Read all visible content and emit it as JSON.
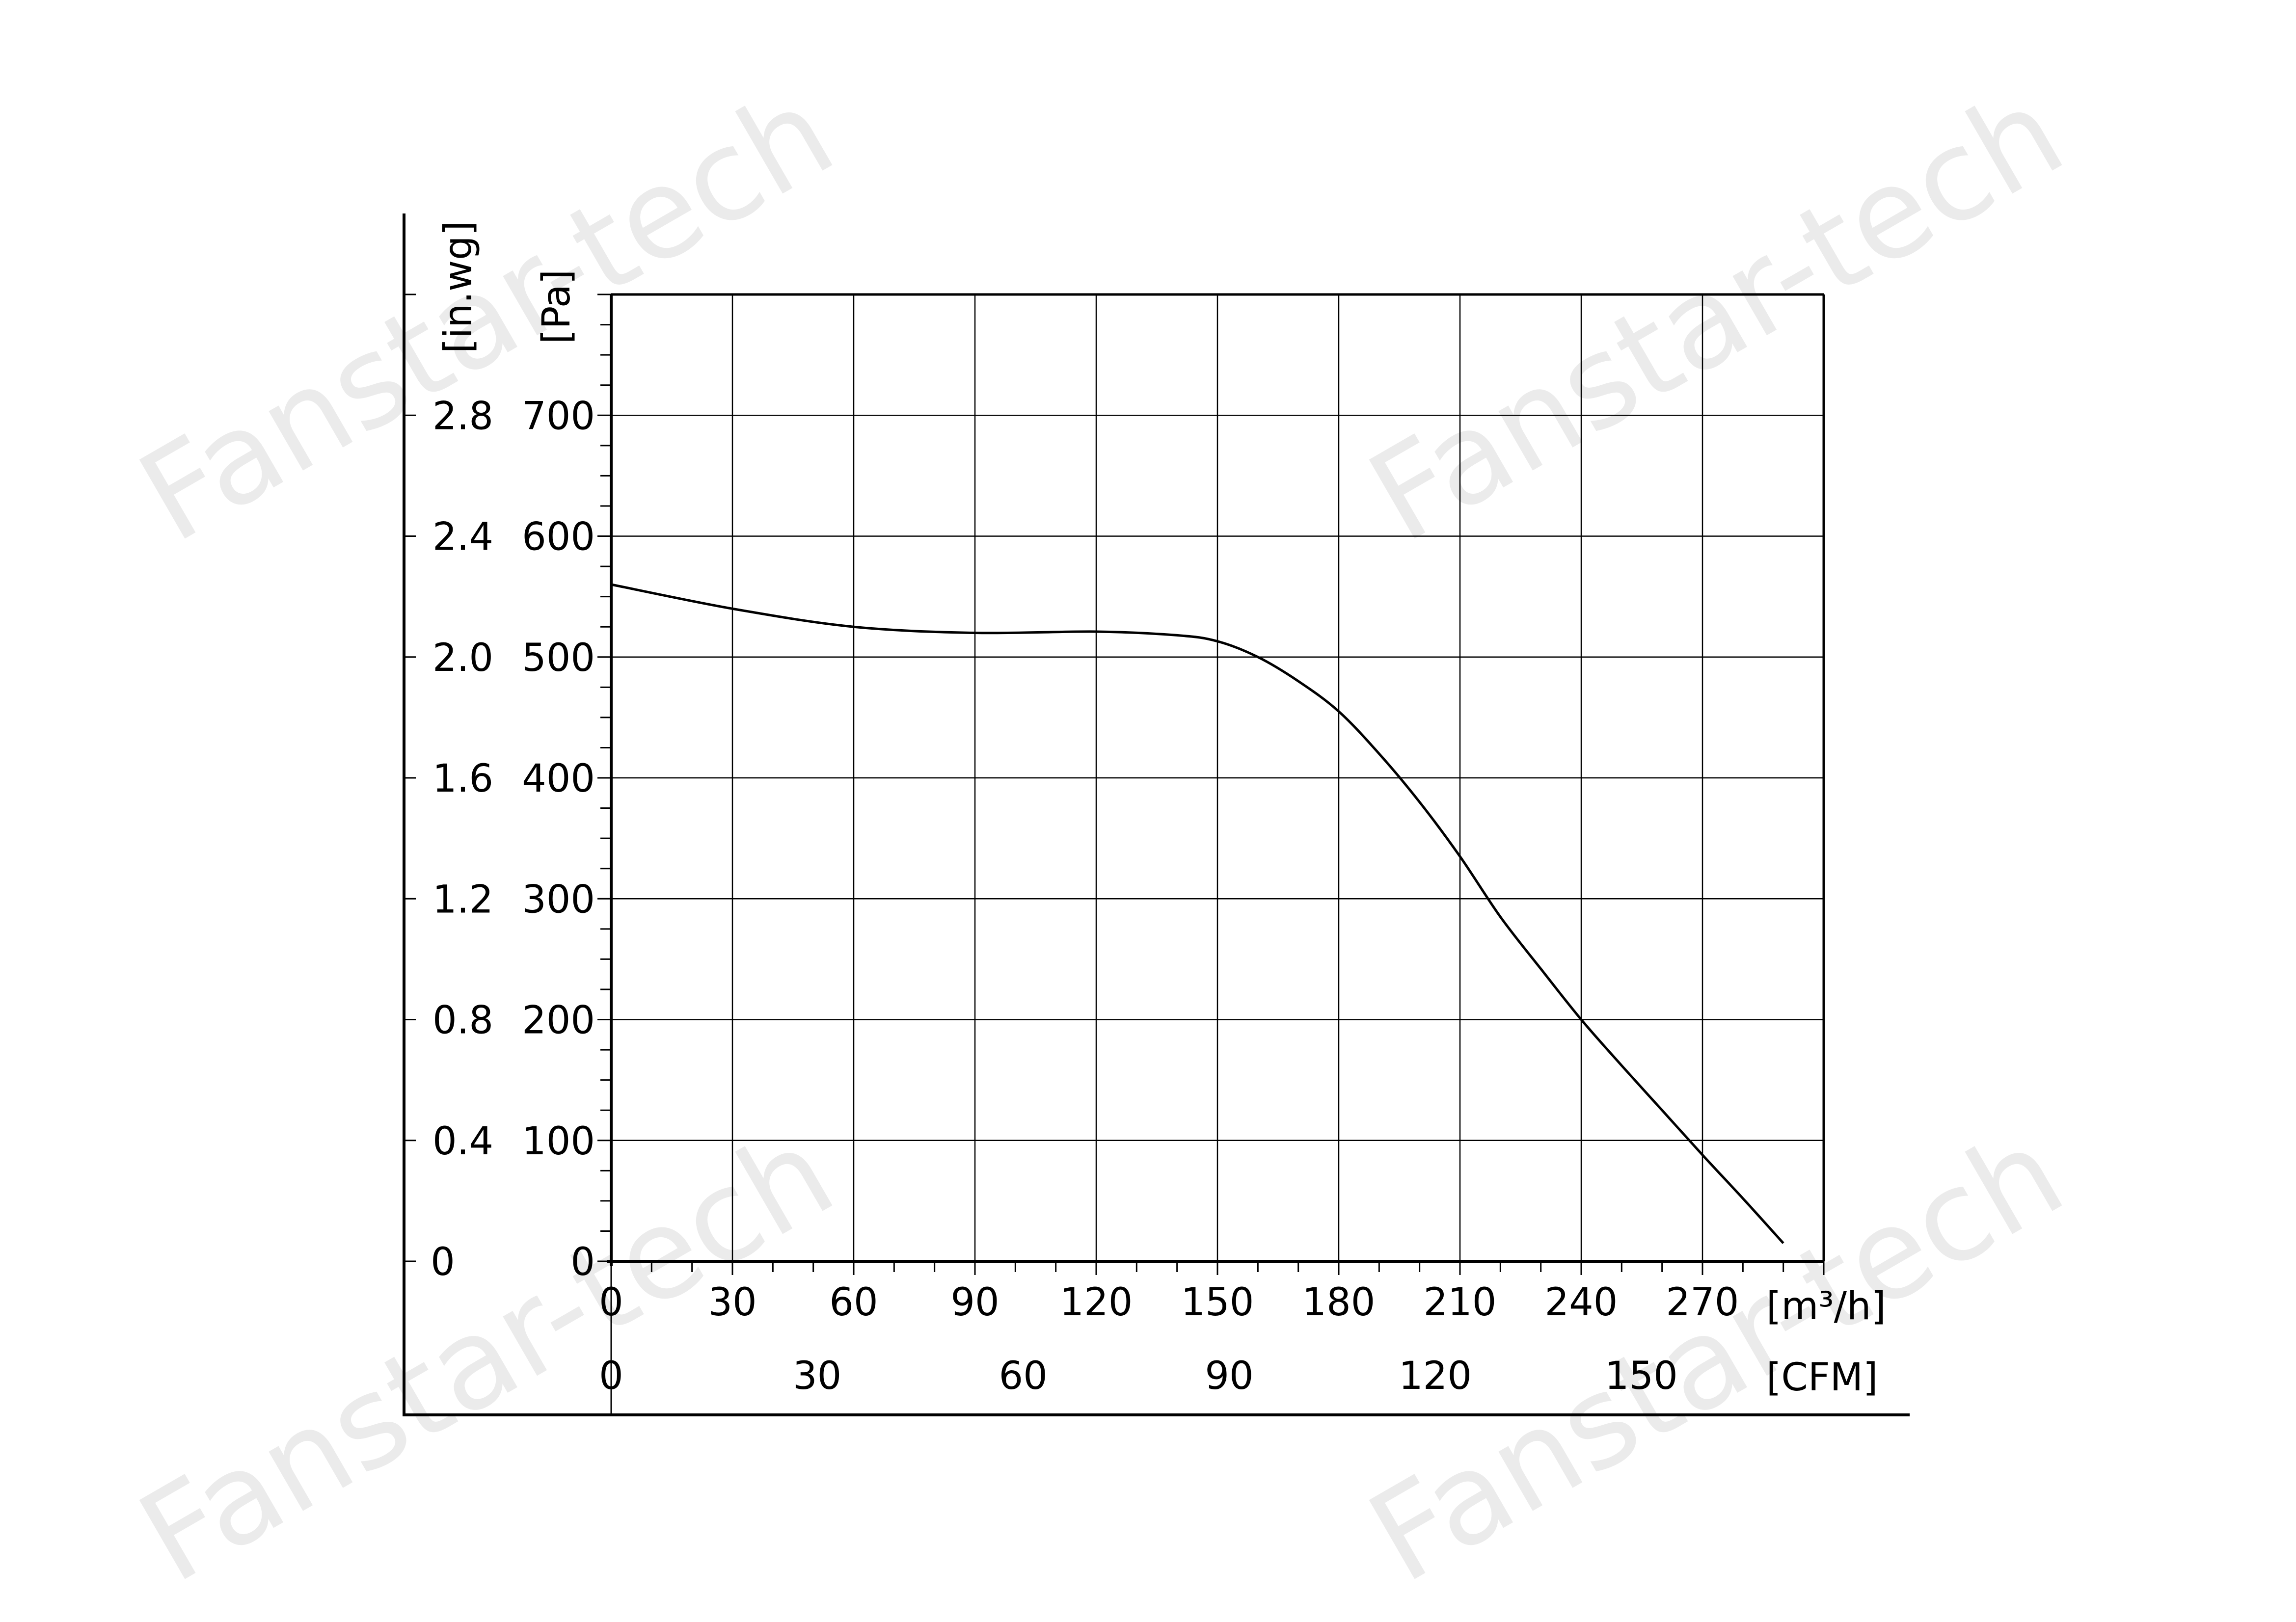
{
  "watermark": "Fanstar-tech",
  "axes": {
    "y_left_unit": "[in.wg]",
    "y_right_unit": "[Pa]",
    "x_top_unit": "[m³/h]",
    "x_bottom_unit": "[CFM]"
  },
  "chart_data": {
    "type": "line",
    "x_ticks_m3h": [
      "0",
      "30",
      "60",
      "90",
      "120",
      "150",
      "180",
      "210",
      "240",
      "270"
    ],
    "x_ticks_cfm": [
      "0",
      "30",
      "60",
      "90",
      "120",
      "150"
    ],
    "y_ticks_pa": [
      "0",
      "100",
      "200",
      "300",
      "400",
      "500",
      "600",
      "700"
    ],
    "y_ticks_inwg": [
      "0",
      "0.4",
      "0.8",
      "1.2",
      "1.6",
      "2.0",
      "2.4",
      "2.8"
    ],
    "xlim": [
      0,
      300
    ],
    "ylim": [
      0,
      800
    ],
    "grid": true,
    "series": [
      {
        "x": [
          0,
          30,
          60,
          90,
          120,
          140,
          150,
          160,
          170,
          180,
          190,
          200,
          210,
          220,
          230,
          240,
          250,
          260,
          270,
          280,
          290
        ],
        "y": [
          560,
          540,
          525,
          520,
          521,
          518,
          513,
          500,
          480,
          455,
          420,
          380,
          335,
          285,
          242,
          200,
          162,
          125,
          88,
          52,
          15
        ]
      }
    ]
  }
}
